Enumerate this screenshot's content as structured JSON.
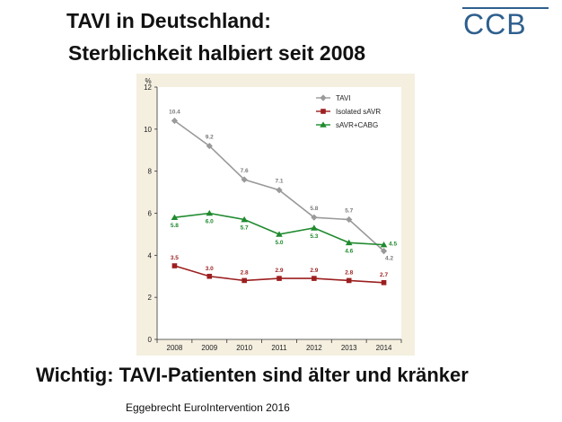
{
  "title": {
    "line1": "TAVI in Deutschland:",
    "line2": "Sterblichkeit halbiert seit 2008"
  },
  "logo": {
    "text": "CCB",
    "color": "#2e5f8e"
  },
  "subtitle": "Wichtig: TAVI-Patienten sind älter und kränker",
  "source": "Eggebrecht EuroIntervention 2016",
  "chart_data": {
    "type": "line",
    "ylabel": "%",
    "xlabel": "",
    "x": [
      "2008",
      "2009",
      "2010",
      "2011",
      "2012",
      "2013",
      "2014"
    ],
    "ylim": [
      0,
      12
    ],
    "yticks": [
      0,
      2,
      4,
      6,
      8,
      10,
      12
    ],
    "grid": false,
    "legend_position": "top-right",
    "series": [
      {
        "name": "TAVI",
        "color": "#9a9a9a",
        "marker": "diamond",
        "values": [
          10.4,
          9.2,
          7.6,
          7.1,
          5.8,
          5.7,
          4.2
        ],
        "labels": [
          "10.4",
          "9.2",
          "7.6",
          "7.1",
          "5.8",
          "5.7",
          "4.2"
        ]
      },
      {
        "name": "Isolated sAVR",
        "color": "#9c1f1f",
        "marker": "square",
        "values": [
          3.5,
          3.0,
          2.8,
          2.9,
          2.9,
          2.8,
          2.7
        ],
        "labels": [
          "3.5",
          "3.0",
          "2.8",
          "2.9",
          "2.9",
          "2.8",
          "2.7"
        ]
      },
      {
        "name": "sAVR+CABG",
        "color": "#1f8a2e",
        "marker": "triangle",
        "values": [
          5.8,
          6.0,
          5.7,
          5.0,
          5.3,
          4.6,
          4.5
        ],
        "labels": [
          "5.8",
          "6.0",
          "5.7",
          "5.0",
          "5.3",
          "4.6",
          "4.5"
        ]
      }
    ]
  }
}
